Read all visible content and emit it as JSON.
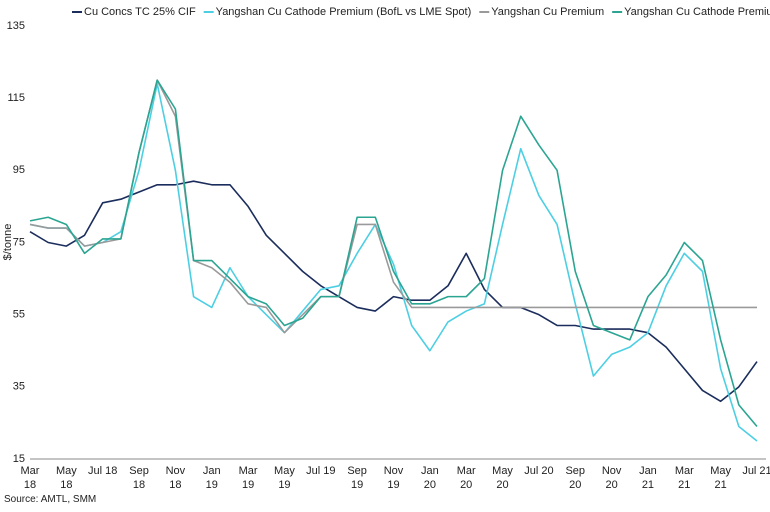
{
  "chart_data": {
    "type": "line",
    "y_label": "$/tonne",
    "source": "Source: AMTL, SMM",
    "categories": [
      "Mar 18",
      null,
      "May 18",
      null,
      "Jul 18",
      null,
      "Sep 18",
      null,
      "Nov 18",
      null,
      "Jan 19",
      null,
      "Mar 19",
      null,
      "May 19",
      null,
      "Jul 19",
      null,
      "Sep 19",
      null,
      "Nov 19",
      null,
      "Jan 20",
      null,
      "Mar 20",
      null,
      "May 20",
      null,
      "Jul 20",
      null,
      "Sep 20",
      null,
      "Nov 20",
      null,
      "Jan 21",
      null,
      "Mar 21",
      null,
      "May 21",
      null,
      "Jul 21"
    ],
    "series": [
      {
        "name": "Cu Concs TC 25% CIF",
        "color": "#1b2d5c",
        "values": [
          78,
          75,
          74,
          77,
          86,
          87,
          89,
          91,
          91,
          92,
          91,
          91,
          85,
          77,
          72,
          67,
          63,
          60,
          57,
          56,
          60,
          59,
          59,
          63,
          72,
          62,
          57,
          57,
          55,
          52,
          52,
          51,
          51,
          51,
          50,
          46,
          40,
          34,
          31,
          35,
          42
        ]
      },
      {
        "name": "Yangshan Cu Cathode Premium (BofL vs LME Spot)",
        "color": "#4dcfe3",
        "values": [
          80,
          79,
          79,
          74,
          75,
          78,
          95,
          119,
          95,
          60,
          57,
          68,
          60,
          55,
          50,
          56,
          62,
          63,
          72,
          80,
          69,
          52,
          45,
          53,
          56,
          58,
          80,
          101,
          88,
          80,
          58,
          38,
          44,
          46,
          50,
          63,
          72,
          67,
          40,
          24,
          20
        ]
      },
      {
        "name": "Yangshan Cu Premium",
        "color": "#9a9a9a",
        "values": [
          80,
          79,
          79,
          74,
          75,
          76,
          100,
          120,
          110,
          70,
          68,
          64,
          58,
          57,
          50,
          55,
          60,
          60,
          80,
          80,
          64,
          57,
          57,
          57,
          57,
          57,
          57,
          57,
          57,
          57,
          57,
          57,
          57,
          57,
          57,
          57,
          57,
          57,
          57,
          57,
          57
        ]
      },
      {
        "name": "Yangshan Cu Cathode Premium",
        "color": "#2ba592",
        "values": [
          81,
          82,
          80,
          72,
          76,
          76,
          100,
          120,
          112,
          70,
          70,
          65,
          60,
          58,
          52,
          54,
          60,
          60,
          82,
          82,
          67,
          58,
          58,
          60,
          60,
          65,
          95,
          110,
          102,
          95,
          67,
          52,
          50,
          48,
          60,
          66,
          75,
          70,
          48,
          30,
          24
        ]
      }
    ],
    "ylim": [
      15,
      135
    ],
    "yticks": [
      15,
      35,
      55,
      75,
      95,
      115,
      135
    ],
    "grid": false
  }
}
